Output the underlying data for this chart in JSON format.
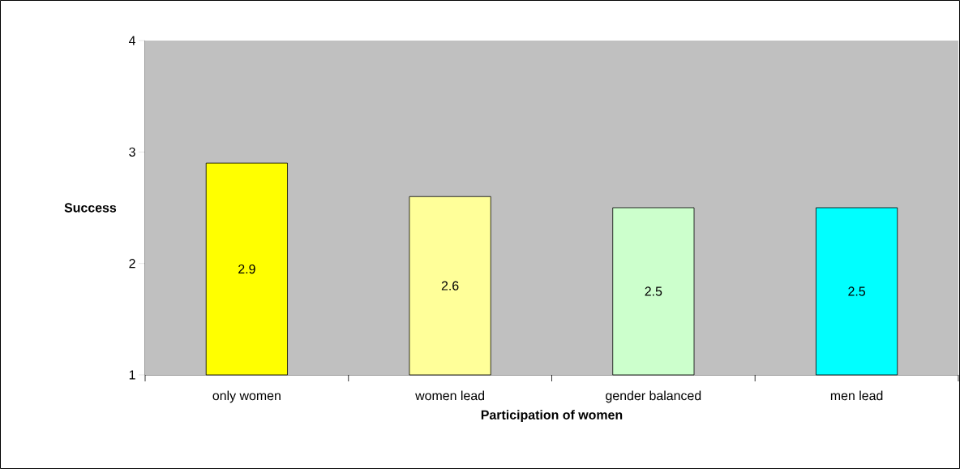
{
  "chart_data": {
    "type": "bar",
    "xlabel": "Participation of women",
    "ylabel": "Success",
    "categories": [
      "only women",
      "women lead",
      "gender balanced",
      "men lead"
    ],
    "values": [
      2.9,
      2.6,
      2.5,
      2.5
    ],
    "colors": [
      "#ffff00",
      "#ffff99",
      "#ccffcc",
      "#00ffff"
    ],
    "ylim": [
      1,
      4
    ],
    "yticks": [
      1,
      2,
      3,
      4
    ],
    "data_labels": true
  }
}
